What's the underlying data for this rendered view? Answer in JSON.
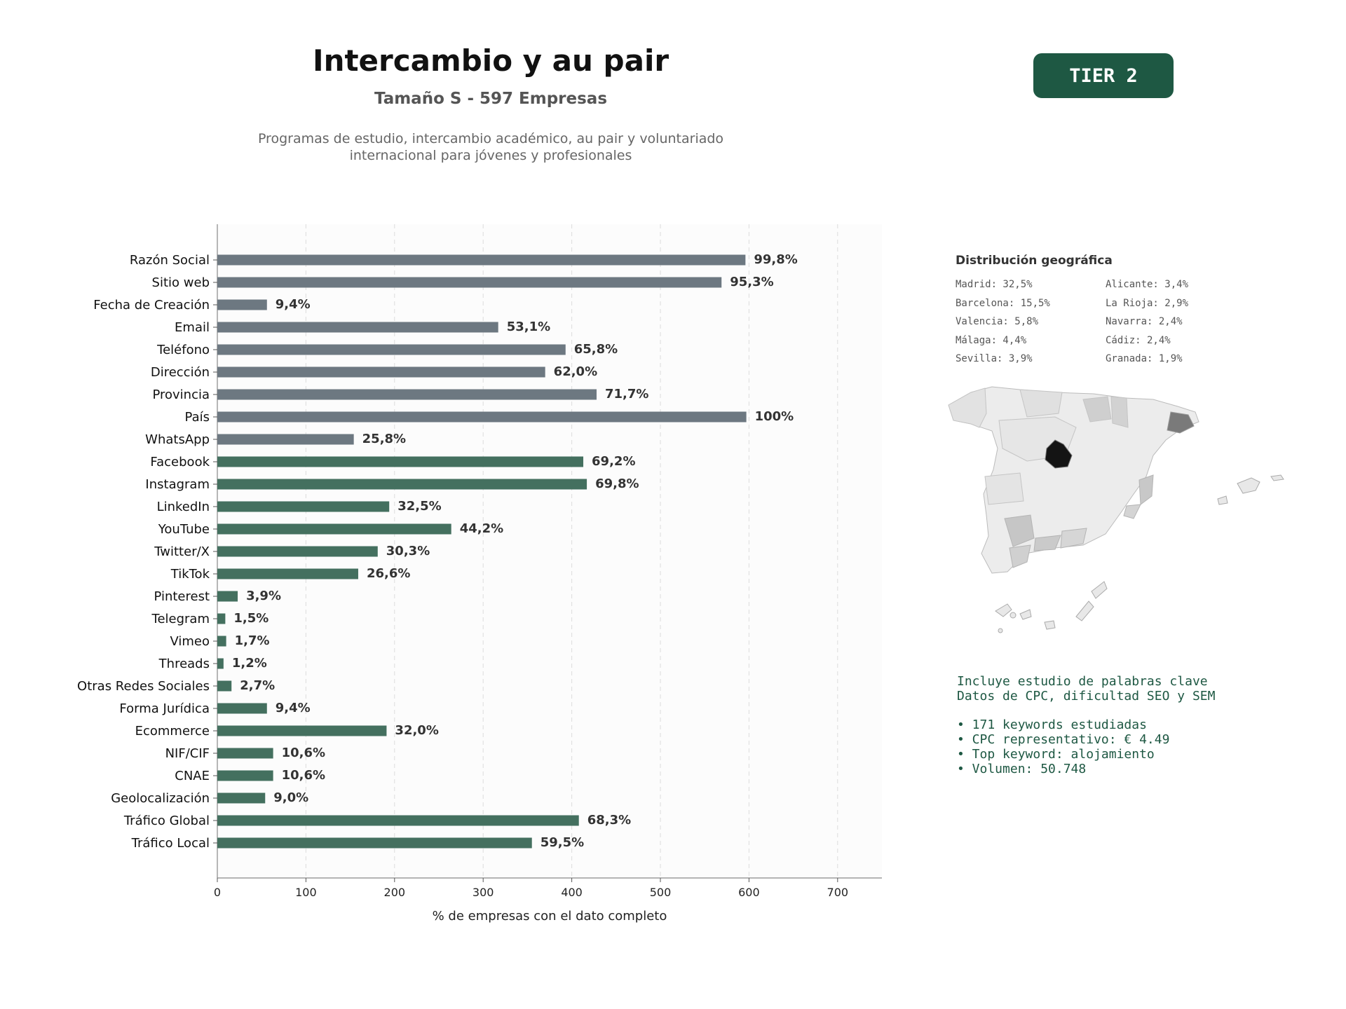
{
  "header": {
    "title": "Intercambio y au pair",
    "subtitle": "Tamaño S - 597 Empresas",
    "description_line1": "Programas de estudio, intercambio académico, au pair y voluntariado",
    "description_line2": "internacional para jóvenes y profesionales"
  },
  "badge": {
    "label": "TIER 2",
    "color": "#1e5843"
  },
  "chart_data": {
    "type": "bar",
    "orientation": "horizontal",
    "xlabel": "% de empresas con el dato completo",
    "xlim": [
      0,
      750
    ],
    "xticks": [
      0,
      100,
      200,
      300,
      400,
      500,
      600,
      700
    ],
    "grid": "vertical dashed",
    "colors": {
      "basic": "#6d7881",
      "digital": "#44705f"
    },
    "categories": [
      "Razón Social",
      "Sitio web",
      "Fecha de Creación",
      "Email",
      "Teléfono",
      "Dirección",
      "Provincia",
      "País",
      "WhatsApp",
      "Facebook",
      "Instagram",
      "LinkedIn",
      "YouTube",
      "Twitter/X",
      "TikTok",
      "Pinterest",
      "Telegram",
      "Vimeo",
      "Threads",
      "Otras Redes Sociales",
      "Forma Jurídica",
      "Ecommerce",
      "NIF/CIF",
      "CNAE",
      "Geolocalización",
      "Tráfico Global",
      "Tráfico Local"
    ],
    "values": [
      596,
      569,
      56,
      317,
      393,
      370,
      428,
      597,
      154,
      413,
      417,
      194,
      264,
      181,
      159,
      23,
      9,
      10,
      7,
      16,
      56,
      191,
      63,
      63,
      54,
      408,
      355
    ],
    "labels": [
      "99,8%",
      "95,3%",
      "9,4%",
      "53,1%",
      "65,8%",
      "62,0%",
      "71,7%",
      "100%",
      "25,8%",
      "69,2%",
      "69,8%",
      "32,5%",
      "44,2%",
      "30,3%",
      "26,6%",
      "3,9%",
      "1,5%",
      "1,7%",
      "1,2%",
      "2,7%",
      "9,4%",
      "32,0%",
      "10,6%",
      "10,6%",
      "9,0%",
      "68,3%",
      "59,5%"
    ],
    "groups": [
      "basic",
      "basic",
      "basic",
      "basic",
      "basic",
      "basic",
      "basic",
      "basic",
      "basic",
      "digital",
      "digital",
      "digital",
      "digital",
      "digital",
      "digital",
      "digital",
      "digital",
      "digital",
      "digital",
      "digital",
      "digital",
      "digital",
      "digital",
      "digital",
      "digital",
      "digital",
      "digital"
    ]
  },
  "geo": {
    "title": "Distribución geográfica",
    "col1": [
      "Madrid: 32,5%",
      "Barcelona: 15,5%",
      "Valencia: 5,8%",
      "Málaga: 4,4%",
      "Sevilla: 3,9%"
    ],
    "col2": [
      "Alicante: 3,4%",
      "La Rioja: 2,9%",
      "Navarra: 2,4%",
      "Cádiz: 2,4%",
      "Granada: 1,9%"
    ]
  },
  "keywords": {
    "line1": "Incluye estudio de palabras clave",
    "line2": "Datos de CPC, dificultad SEO y SEM",
    "bullets": [
      "• 171 keywords estudiadas",
      "• CPC representativo: € 4.49",
      "• Top keyword: alojamiento",
      "• Volumen: 50.748"
    ]
  }
}
